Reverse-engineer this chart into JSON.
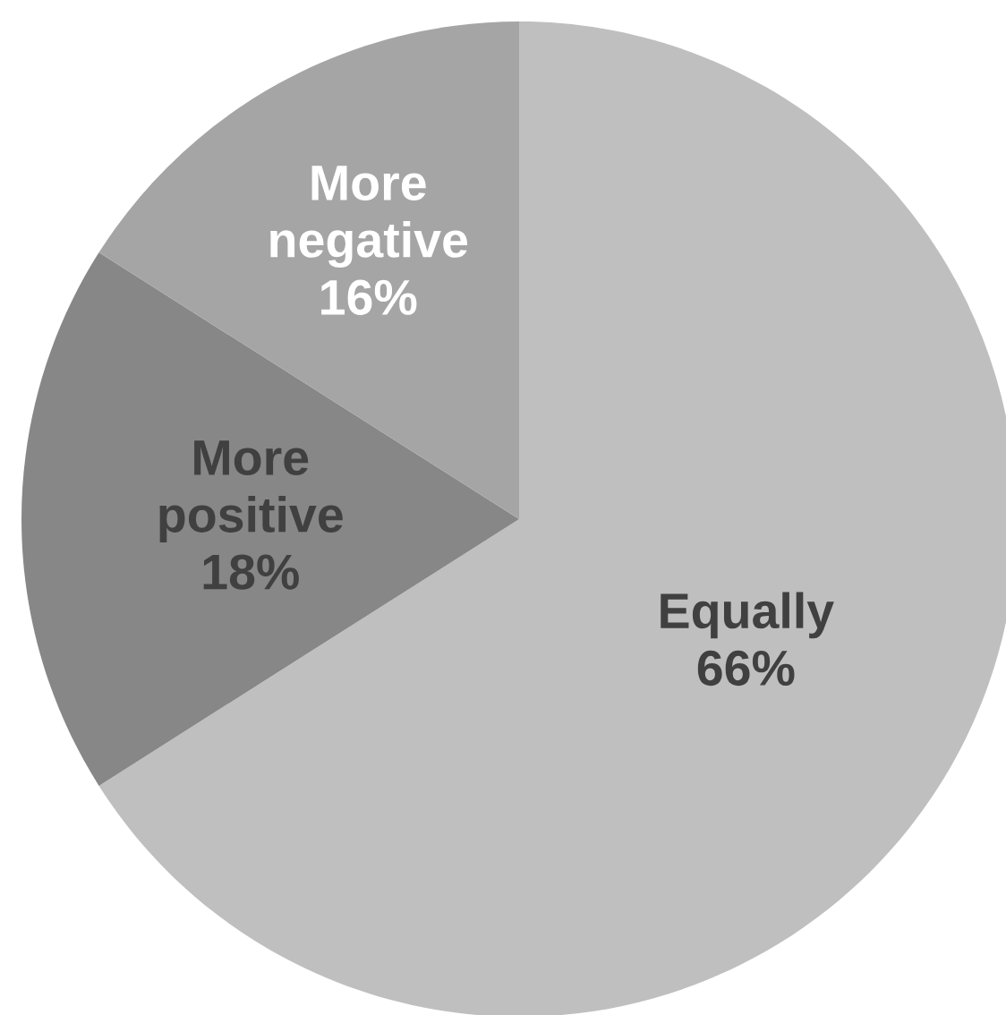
{
  "chart_data": {
    "type": "pie",
    "categories": [
      "Equally",
      "More positive",
      "More negative"
    ],
    "values": [
      66,
      18,
      16
    ],
    "value_labels": [
      "66%",
      "18%",
      "16%"
    ],
    "colors": [
      "#bfbfbf",
      "#878787",
      "#a5a5a5"
    ]
  }
}
